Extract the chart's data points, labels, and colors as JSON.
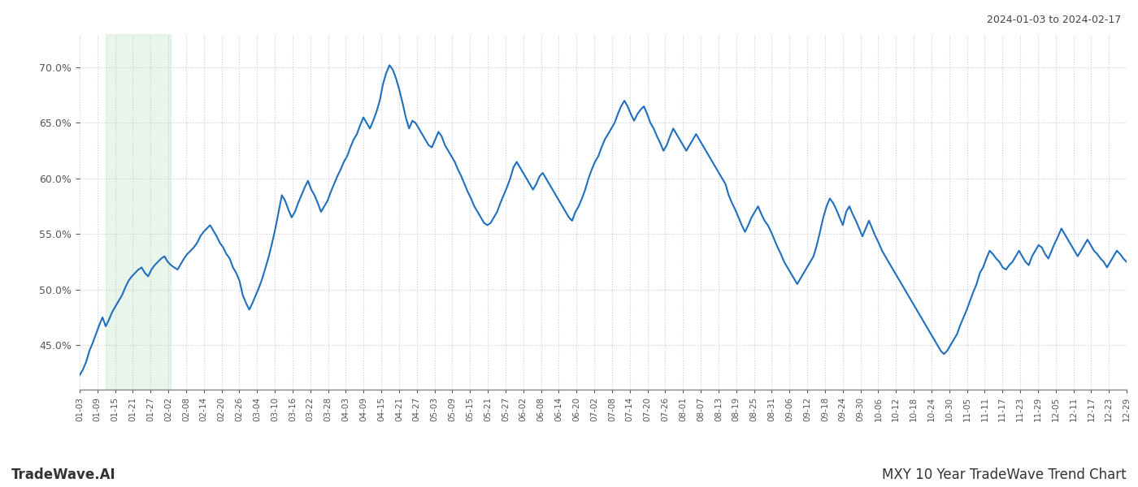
{
  "title_top_right": "2024-01-03 to 2024-02-17",
  "title_bottom_left": "TradeWave.AI",
  "title_bottom_right": "MXY 10 Year TradeWave Trend Chart",
  "line_color": "#1f6fbf",
  "line_width": 1.5,
  "background_color": "#ffffff",
  "grid_color": "#cccccc",
  "highlight_color": "#d4edda",
  "highlight_alpha": 0.55,
  "highlight_xstart": 8,
  "highlight_xend": 28,
  "ylim": [
    41.0,
    73.0
  ],
  "yticks": [
    45.0,
    50.0,
    55.0,
    60.0,
    65.0,
    70.0
  ],
  "x_tick_labels": [
    "01-03",
    "01-09",
    "01-15",
    "01-21",
    "01-27",
    "02-02",
    "02-08",
    "02-14",
    "02-20",
    "02-26",
    "03-04",
    "03-10",
    "03-16",
    "03-22",
    "03-28",
    "04-03",
    "04-09",
    "04-15",
    "04-21",
    "04-27",
    "05-03",
    "05-09",
    "05-15",
    "05-21",
    "05-27",
    "06-02",
    "06-08",
    "06-14",
    "06-20",
    "07-02",
    "07-08",
    "07-14",
    "07-20",
    "07-26",
    "08-01",
    "08-07",
    "08-13",
    "08-19",
    "08-25",
    "08-31",
    "09-06",
    "09-12",
    "09-18",
    "09-24",
    "09-30",
    "10-06",
    "10-12",
    "10-18",
    "10-24",
    "10-30",
    "11-05",
    "11-11",
    "11-17",
    "11-23",
    "11-29",
    "12-05",
    "12-11",
    "12-17",
    "12-23",
    "12-29"
  ],
  "values": [
    42.3,
    42.8,
    43.5,
    44.5,
    45.2,
    46.0,
    46.8,
    47.5,
    46.7,
    47.3,
    48.0,
    48.5,
    49.0,
    49.5,
    50.2,
    50.8,
    51.2,
    51.5,
    51.8,
    52.0,
    51.5,
    51.2,
    51.8,
    52.2,
    52.5,
    52.8,
    53.0,
    52.5,
    52.2,
    52.0,
    51.8,
    52.3,
    52.8,
    53.2,
    53.5,
    53.8,
    54.2,
    54.8,
    55.2,
    55.5,
    55.8,
    55.3,
    54.8,
    54.2,
    53.8,
    53.2,
    52.8,
    52.0,
    51.5,
    50.8,
    49.5,
    48.8,
    48.2,
    48.8,
    49.5,
    50.2,
    51.0,
    52.0,
    53.0,
    54.2,
    55.5,
    57.0,
    58.5,
    58.0,
    57.2,
    56.5,
    57.0,
    57.8,
    58.5,
    59.2,
    59.8,
    59.0,
    58.5,
    57.8,
    57.0,
    57.5,
    58.0,
    58.8,
    59.5,
    60.2,
    60.8,
    61.5,
    62.0,
    62.8,
    63.5,
    64.0,
    64.8,
    65.5,
    65.0,
    64.5,
    65.2,
    66.0,
    67.0,
    68.5,
    69.5,
    70.2,
    69.8,
    69.0,
    68.0,
    66.8,
    65.5,
    64.5,
    65.2,
    65.0,
    64.5,
    64.0,
    63.5,
    63.0,
    62.8,
    63.5,
    64.2,
    63.8,
    63.0,
    62.5,
    62.0,
    61.5,
    60.8,
    60.2,
    59.5,
    58.8,
    58.2,
    57.5,
    57.0,
    56.5,
    56.0,
    55.8,
    56.0,
    56.5,
    57.0,
    57.8,
    58.5,
    59.2,
    60.0,
    61.0,
    61.5,
    61.0,
    60.5,
    60.0,
    59.5,
    59.0,
    59.5,
    60.2,
    60.5,
    60.0,
    59.5,
    59.0,
    58.5,
    58.0,
    57.5,
    57.0,
    56.5,
    56.2,
    57.0,
    57.5,
    58.2,
    59.0,
    60.0,
    60.8,
    61.5,
    62.0,
    62.8,
    63.5,
    64.0,
    64.5,
    65.0,
    65.8,
    66.5,
    67.0,
    66.5,
    65.8,
    65.2,
    65.8,
    66.2,
    66.5,
    65.8,
    65.0,
    64.5,
    63.8,
    63.2,
    62.5,
    63.0,
    63.8,
    64.5,
    64.0,
    63.5,
    63.0,
    62.5,
    63.0,
    63.5,
    64.0,
    63.5,
    63.0,
    62.5,
    62.0,
    61.5,
    61.0,
    60.5,
    60.0,
    59.5,
    58.5,
    57.8,
    57.2,
    56.5,
    55.8,
    55.2,
    55.8,
    56.5,
    57.0,
    57.5,
    56.8,
    56.2,
    55.8,
    55.2,
    54.5,
    53.8,
    53.2,
    52.5,
    52.0,
    51.5,
    51.0,
    50.5,
    51.0,
    51.5,
    52.0,
    52.5,
    53.0,
    54.0,
    55.2,
    56.5,
    57.5,
    58.2,
    57.8,
    57.2,
    56.5,
    55.8,
    57.0,
    57.5,
    56.8,
    56.2,
    55.5,
    54.8,
    55.5,
    56.2,
    55.5,
    54.8,
    54.2,
    53.5,
    53.0,
    52.5,
    52.0,
    51.5,
    51.0,
    50.5,
    50.0,
    49.5,
    49.0,
    48.5,
    48.0,
    47.5,
    47.0,
    46.5,
    46.0,
    45.5,
    45.0,
    44.5,
    44.2,
    44.5,
    45.0,
    45.5,
    46.0,
    46.8,
    47.5,
    48.2,
    49.0,
    49.8,
    50.5,
    51.5,
    52.0,
    52.8,
    53.5,
    53.2,
    52.8,
    52.5,
    52.0,
    51.8,
    52.2,
    52.5,
    53.0,
    53.5,
    53.0,
    52.5,
    52.2,
    53.0,
    53.5,
    54.0,
    53.8,
    53.2,
    52.8,
    53.5,
    54.2,
    54.8,
    55.5,
    55.0,
    54.5,
    54.0,
    53.5,
    53.0,
    53.5,
    54.0,
    54.5,
    54.0,
    53.5,
    53.2,
    52.8,
    52.5,
    52.0,
    52.5,
    53.0,
    53.5,
    53.2,
    52.8,
    52.5
  ]
}
